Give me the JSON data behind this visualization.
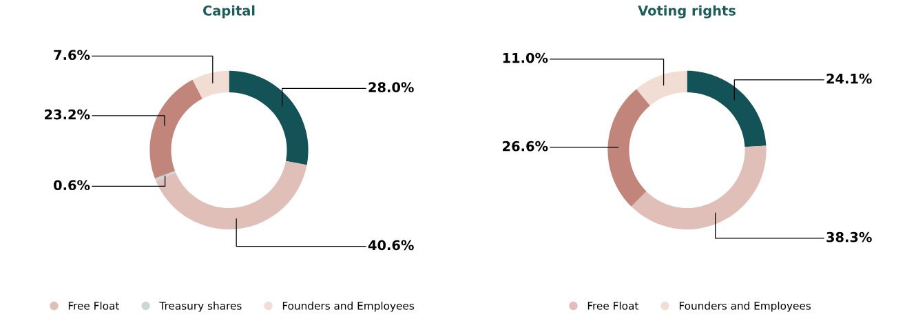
{
  "chart_data": [
    {
      "type": "donut",
      "title": "Capital",
      "categories": [
        null,
        "Free Float",
        "Treasury shares",
        null,
        "Founders and Employees"
      ],
      "values": [
        28.0,
        40.6,
        0.6,
        23.2,
        7.6
      ],
      "value_labels": [
        "28.0%",
        "40.6%",
        "0.6%",
        "23.2%",
        "7.6%"
      ],
      "colors": [
        "#135357",
        "#dfbfb7",
        "#cdd5d6",
        "#c1857c",
        "#f2ddd5"
      ],
      "legend": "bottom"
    },
    {
      "type": "donut",
      "title": "Voting rights",
      "categories": [
        null,
        "Free Float",
        null,
        "Founders and Employees"
      ],
      "values": [
        24.1,
        38.3,
        26.6,
        11.0
      ],
      "value_labels": [
        "24.1%",
        "38.3%",
        "26.6%",
        "11.0%"
      ],
      "colors": [
        "#135357",
        "#dfbfb7",
        "#c1857c",
        "#f2ddd5"
      ],
      "legend": "bottom"
    }
  ]
}
